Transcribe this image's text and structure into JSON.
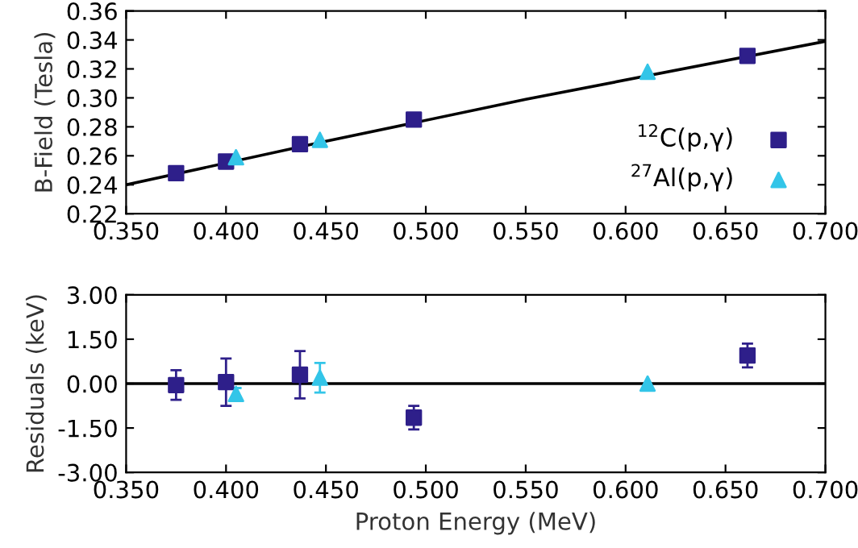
{
  "chart_data": [
    {
      "type": "scatter",
      "ylabel": "B-Field (Tesla)",
      "legend": "bottom right",
      "grid": false,
      "xlim": [
        0.35,
        0.7
      ],
      "xticks": [
        {
          "value": 0.35,
          "label": "0.350"
        },
        {
          "value": 0.4,
          "label": "0.400"
        },
        {
          "value": 0.45,
          "label": "0.450"
        },
        {
          "value": 0.5,
          "label": "0.500"
        },
        {
          "value": 0.55,
          "label": "0.550"
        },
        {
          "value": 0.6,
          "label": "0.600"
        },
        {
          "value": 0.65,
          "label": "0.650"
        },
        {
          "value": 0.7,
          "label": "0.700"
        }
      ],
      "ylim": [
        0.22,
        0.36
      ],
      "yticks": [
        {
          "value": 0.22,
          "label": "0.22"
        },
        {
          "value": 0.24,
          "label": "0.24"
        },
        {
          "value": 0.26,
          "label": "0.26"
        },
        {
          "value": 0.28,
          "label": "0.28"
        },
        {
          "value": 0.3,
          "label": "0.30"
        },
        {
          "value": 0.32,
          "label": "0.32"
        },
        {
          "value": 0.34,
          "label": "0.34"
        },
        {
          "value": 0.36,
          "label": "0.36"
        }
      ],
      "series": [
        {
          "type": "line",
          "color": "#000000",
          "marker": "none",
          "x": [
            0.35,
            0.45,
            0.55,
            0.7
          ],
          "values": [
            0.24,
            0.27,
            0.299,
            0.339
          ]
        },
        {
          "name": "$^{12}$C(p,γ)",
          "color": "#2e1f8a",
          "marker": "square",
          "x": [
            0.375,
            0.4,
            0.437,
            0.494,
            0.661
          ],
          "values": [
            0.248,
            0.256,
            0.268,
            0.285,
            0.329
          ]
        },
        {
          "name": "$^{27}$Al(p,γ)",
          "color": "#33c5e8",
          "marker": "triangle",
          "x": [
            0.405,
            0.447,
            0.611
          ],
          "values": [
            0.259,
            0.271,
            0.318
          ]
        }
      ]
    },
    {
      "type": "scatter",
      "xlabel": "Proton Energy (MeV)",
      "ylabel": "Residuals (keV)",
      "grid": false,
      "xlim": [
        0.35,
        0.7
      ],
      "xticks": [
        {
          "value": 0.35,
          "label": "0.350"
        },
        {
          "value": 0.4,
          "label": "0.400"
        },
        {
          "value": 0.45,
          "label": "0.450"
        },
        {
          "value": 0.5,
          "label": "0.500"
        },
        {
          "value": 0.55,
          "label": "0.550"
        },
        {
          "value": 0.6,
          "label": "0.600"
        },
        {
          "value": 0.65,
          "label": "0.650"
        },
        {
          "value": 0.7,
          "label": "0.700"
        }
      ],
      "ylim": [
        -3,
        3
      ],
      "yticks": [
        {
          "value": -3,
          "label": "-3.00"
        },
        {
          "value": -1.5,
          "label": "-1.50"
        },
        {
          "value": 0,
          "label": "0.00"
        },
        {
          "value": 1.5,
          "label": "1.50"
        },
        {
          "value": 3,
          "label": "3.00"
        }
      ],
      "ref_lines": [
        {
          "axis": "y",
          "value": 0,
          "color": "#000000"
        }
      ],
      "series": [
        {
          "color": "#2e1f8a",
          "marker": "square",
          "x": [
            0.375,
            0.4,
            0.437,
            0.494,
            0.661
          ],
          "values": [
            -0.05,
            0.05,
            0.3,
            -1.15,
            0.95
          ],
          "errors": [
            0.5,
            0.8,
            0.8,
            0.4,
            0.4
          ]
        },
        {
          "color": "#33c5e8",
          "marker": "triangle",
          "x": [
            0.405,
            0.447,
            0.611
          ],
          "values": [
            -0.35,
            0.2,
            0.0
          ],
          "errors": [
            0.2,
            0.5,
            null
          ]
        }
      ]
    }
  ]
}
